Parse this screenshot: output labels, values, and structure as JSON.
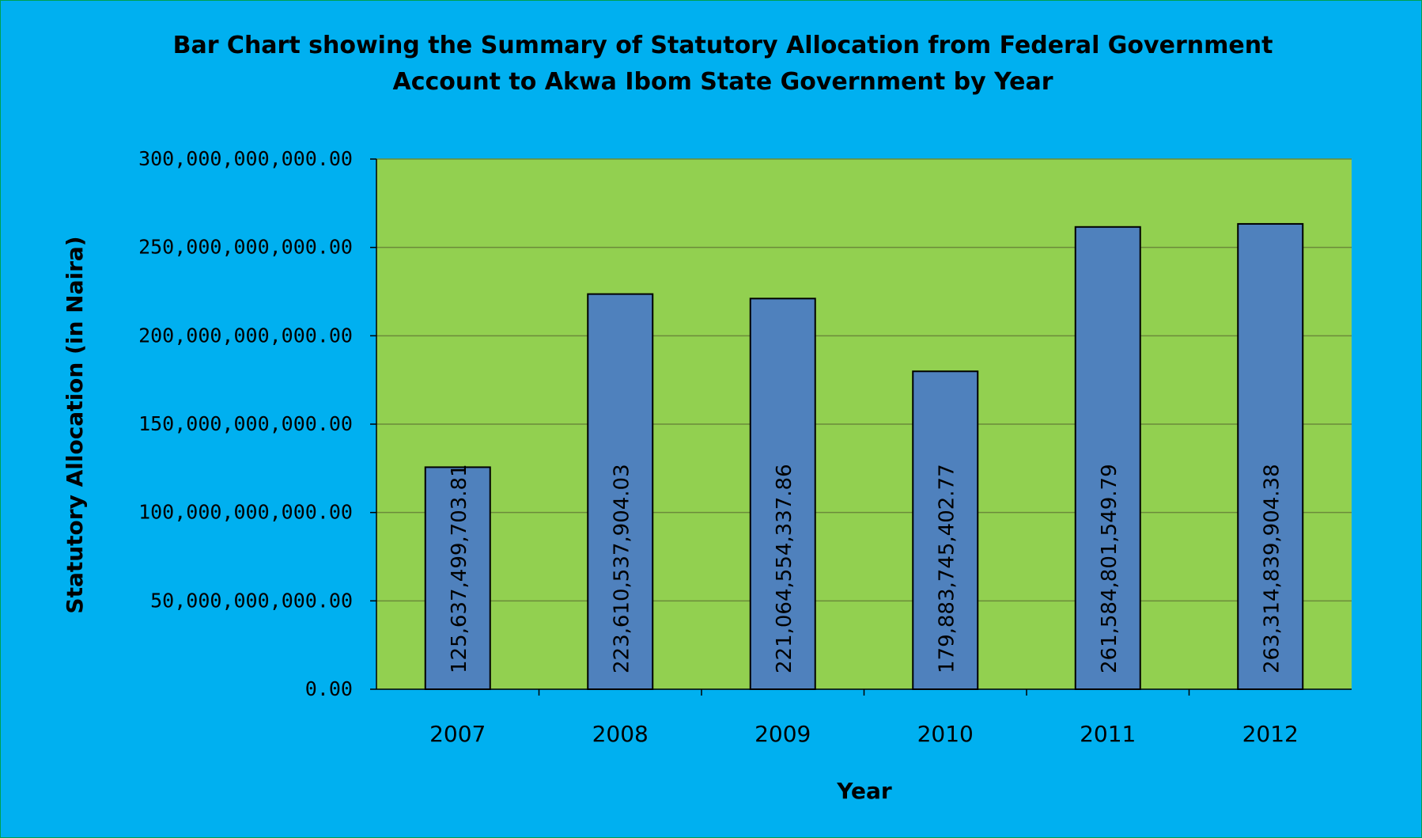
{
  "chart_data": {
    "type": "bar",
    "title_lines": [
      "Bar Chart showing  the Summary of Statutory Allocation from Federal Government",
      "Account to Akwa Ibom State Government by Year"
    ],
    "xlabel": "Year",
    "ylabel": "Statutory  Allocation (in Naira)",
    "categories": [
      "2007",
      "2008",
      "2009",
      "2010",
      "2011",
      "2012"
    ],
    "values": [
      125637499703.81,
      223610537904.03,
      221064554337.86,
      179883745402.77,
      261584801549.79,
      263314839904.38
    ],
    "data_labels": [
      "125,637,499,703.81",
      "223,610,537,904.03",
      "221,064,554,337.86",
      "179,883,745,402.77",
      "261,584,801,549.79",
      "263,314,839,904.38"
    ],
    "ylim": [
      0,
      300000000000
    ],
    "yticks": [
      0,
      50000000000,
      100000000000,
      150000000000,
      200000000000,
      250000000000,
      300000000000
    ],
    "ytick_labels": [
      "0.00",
      "50,000,000,000.00",
      "100,000,000,000.00",
      "150,000,000,000.00",
      "200,000,000,000.00",
      "250,000,000,000.00",
      "300,000,000,000.00"
    ],
    "grid": true,
    "legend": "none",
    "colors": {
      "background": "#00b0f0",
      "plot_area": "#92d050",
      "bar_fill": "#4f81bd",
      "bar_stroke": "#000000",
      "gridline": "#6b8a3a"
    }
  }
}
